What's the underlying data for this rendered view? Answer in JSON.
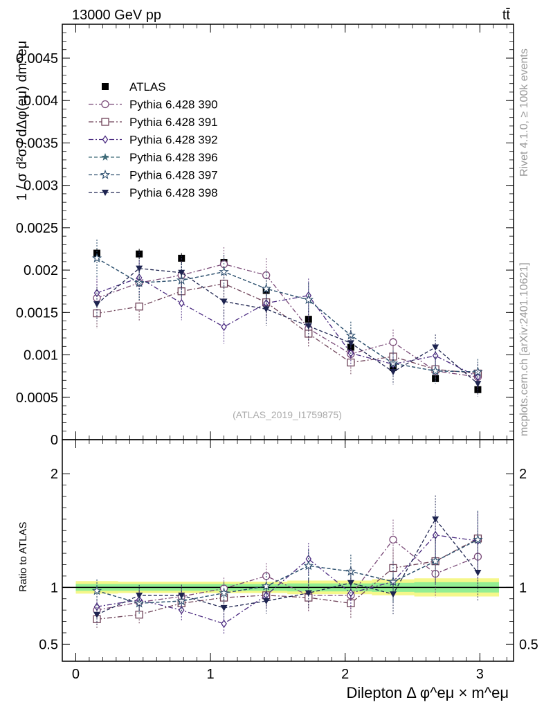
{
  "header": {
    "left": "13000 GeV pp",
    "right": "tt̄",
    "side_top": "Rivet 4.1.0, ≥ 100k events",
    "side_bottom": "mcplots.cern.ch [arXiv:2401.10621]",
    "watermark": "(ATLAS_2019_I1759875)"
  },
  "chart_data": [
    {
      "type": "scatter",
      "panel": "main",
      "ylabel": "1 / σ  d²σ / dΔφ(eμ) dm^eμ",
      "xlim": [
        -0.1,
        3.25
      ],
      "ylim": [
        0,
        0.0049
      ],
      "yticks": [
        0,
        0.0005,
        0.001,
        0.0015,
        0.002,
        0.0025,
        0.003,
        0.0035,
        0.004,
        0.0045
      ],
      "ytick_labels": [
        "0",
        "0.0005",
        "0.001",
        "0.0015",
        "0.002",
        "0.0025",
        "0.003",
        "0.0035",
        "0.004",
        "0.0045"
      ],
      "x": [
        0.157,
        0.471,
        0.785,
        1.1,
        1.414,
        1.728,
        2.042,
        2.356,
        2.67,
        2.985
      ],
      "legend": {
        "placement": "top-left"
      },
      "series": [
        {
          "name": "ATLAS",
          "color": "#000000",
          "marker": "filled-square",
          "line": "none",
          "values": [
            0.0022,
            0.00219,
            0.00214,
            0.00209,
            0.00176,
            0.00142,
            0.00109,
            0.00085,
            0.00072,
            0.00059
          ],
          "errors": [
            6e-05,
            6e-05,
            6e-05,
            6e-05,
            5e-05,
            4e-05,
            4e-05,
            3e-05,
            3e-05,
            3e-05
          ]
        },
        {
          "name": "Pythia 6.428 390",
          "color": "#7a4a78",
          "marker": "open-circle",
          "line": "dashdot",
          "values": [
            0.00167,
            0.00185,
            0.00194,
            0.00207,
            0.00194,
            0.00131,
            0.00101,
            0.00115,
            0.00081,
            0.00074
          ],
          "errors": [
            0.0002,
            0.0002,
            0.0002,
            0.0002,
            0.0002,
            0.0002,
            0.00015,
            0.00015,
            0.00015,
            0.00015
          ]
        },
        {
          "name": "Pythia 6.428 391",
          "color": "#6e4258",
          "marker": "open-square",
          "line": "dashdot",
          "values": [
            0.00149,
            0.00157,
            0.00175,
            0.00184,
            0.00162,
            0.00125,
            0.00091,
            0.00098,
            0.00083,
            0.00078
          ],
          "errors": [
            0.00018,
            0.00018,
            0.00018,
            0.00018,
            0.00018,
            0.00016,
            0.00014,
            0.00014,
            0.00014,
            0.00014
          ]
        },
        {
          "name": "Pythia 6.428 392",
          "color": "#4a2a80",
          "marker": "open-diamond",
          "line": "dashdot",
          "values": [
            0.00173,
            0.00191,
            0.00161,
            0.00133,
            0.00161,
            0.0017,
            0.00102,
            0.00089,
            0.00099,
            0.00074
          ],
          "errors": [
            0.0002,
            0.0002,
            0.0002,
            0.0002,
            0.0002,
            0.0002,
            0.00015,
            0.00015,
            0.00015,
            0.00015
          ]
        },
        {
          "name": "Pythia 6.428 396",
          "color": "#3f6b78",
          "marker": "filled-star",
          "line": "dashed",
          "values": [
            0.00214,
            0.00185,
            0.00188,
            0.00198,
            0.00178,
            0.00165,
            0.00123,
            0.0009,
            0.00081,
            0.0008
          ],
          "errors": [
            0.00022,
            0.0002,
            0.0002,
            0.0002,
            0.0002,
            0.0002,
            0.00016,
            0.00015,
            0.00015,
            0.00015
          ]
        },
        {
          "name": "Pythia 6.428 397",
          "color": "#2c4e6e",
          "marker": "open-star",
          "line": "dashed",
          "values": [
            0.00214,
            0.00185,
            0.00188,
            0.00198,
            0.00178,
            0.00165,
            0.00123,
            0.0009,
            0.00081,
            0.0008
          ],
          "errors": [
            0.00022,
            0.0002,
            0.0002,
            0.0002,
            0.0002,
            0.0002,
            0.00016,
            0.00015,
            0.00015,
            0.00015
          ]
        },
        {
          "name": "Pythia 6.428 398",
          "color": "#1e2450",
          "marker": "filled-triangle-down",
          "line": "dashed",
          "values": [
            0.0016,
            0.00202,
            0.00197,
            0.00163,
            0.00154,
            0.00134,
            0.00114,
            0.0008,
            0.00109,
            0.00066
          ],
          "errors": [
            0.0002,
            0.0002,
            0.0002,
            0.0002,
            0.0002,
            0.00018,
            0.00015,
            0.00015,
            0.00015,
            0.00015
          ]
        }
      ]
    },
    {
      "type": "scatter",
      "panel": "ratio",
      "ylabel": "Ratio to ATLAS",
      "xlabel": "Dilepton Δ φ^eμ × m^eμ",
      "xlim": [
        -0.1,
        3.25
      ],
      "ylim": [
        0.35,
        2.3
      ],
      "xticks": [
        0,
        1,
        2,
        3
      ],
      "xtick_labels": [
        "0",
        "1",
        "2",
        "3"
      ],
      "yticks": [
        0.5,
        1,
        2
      ],
      "ytick_labels": [
        "0.5",
        "1",
        "2"
      ],
      "band_yellow": [
        0.055,
        0.05,
        0.05,
        0.05,
        0.05,
        0.06,
        0.06,
        0.07,
        0.08,
        0.08
      ],
      "band_green": [
        0.03,
        0.03,
        0.03,
        0.03,
        0.03,
        0.035,
        0.035,
        0.04,
        0.045,
        0.045
      ],
      "series": [
        {
          "name": "Pythia 6.428 390",
          "values": [
            0.8,
            0.87,
            0.92,
            0.99,
            1.1,
            0.93,
            0.93,
            1.42,
            1.12,
            1.27
          ]
        },
        {
          "name": "Pythia 6.428 391",
          "values": [
            0.72,
            0.76,
            0.86,
            0.91,
            0.93,
            0.91,
            0.86,
            1.17,
            1.23,
            1.43
          ]
        },
        {
          "name": "Pythia 6.428 392",
          "values": [
            0.83,
            0.89,
            0.8,
            0.68,
            0.93,
            1.25,
            0.95,
            1.05,
            1.46,
            1.41
          ]
        },
        {
          "name": "Pythia 6.428 396",
          "values": [
            0.97,
            0.86,
            0.88,
            0.95,
            1.01,
            1.19,
            1.14,
            1.05,
            1.23,
            1.42
          ]
        },
        {
          "name": "Pythia 6.428 397",
          "values": [
            0.97,
            0.86,
            0.88,
            0.95,
            1.01,
            1.19,
            1.14,
            1.05,
            1.23,
            1.42
          ]
        },
        {
          "name": "Pythia 6.428 398",
          "values": [
            0.76,
            0.93,
            0.93,
            0.82,
            0.88,
            0.95,
            1.04,
            0.94,
            1.6,
            1.13
          ]
        }
      ]
    }
  ]
}
